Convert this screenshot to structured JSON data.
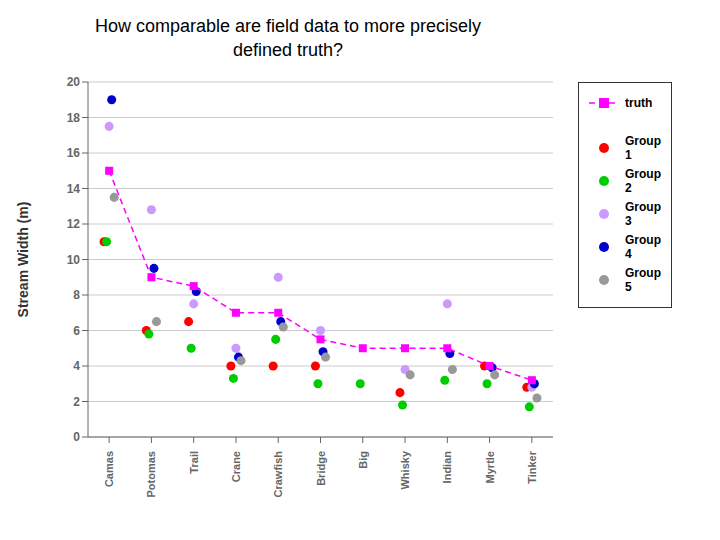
{
  "chart_data": {
    "type": "scatter",
    "title": "How comparable are field data to more precisely\ndefined truth?",
    "ylabel": "Stream Width (m)",
    "categories": [
      "Camas",
      "Potomas",
      "Trail",
      "Crane",
      "Crawfish",
      "Bridge",
      "Big",
      "Whisky",
      "Indian",
      "Myrtle",
      "Tinker"
    ],
    "series": [
      {
        "name": "Group\n1",
        "type": "scatter",
        "color": "#ff0000",
        "marker": "circle",
        "values": [
          11,
          6,
          6.5,
          4,
          4,
          4,
          null,
          2.5,
          null,
          4,
          2.8
        ]
      },
      {
        "name": "Group\n2",
        "type": "scatter",
        "color": "#00cc00",
        "marker": "circle",
        "values": [
          11,
          5.8,
          5,
          3.3,
          5.5,
          3,
          3,
          1.8,
          3.2,
          3,
          1.7
        ]
      },
      {
        "name": "Group\n3",
        "type": "scatter",
        "color": "#cc99ff",
        "marker": "circle",
        "values": [
          17.5,
          12.8,
          7.5,
          5,
          9,
          6,
          null,
          3.8,
          7.5,
          null,
          2.8
        ]
      },
      {
        "name": "Group\n4",
        "type": "scatter",
        "color": "#0000cc",
        "marker": "circle",
        "values": [
          19,
          9.5,
          8.2,
          4.5,
          6.5,
          4.8,
          null,
          null,
          4.7,
          3.9,
          3
        ]
      },
      {
        "name": "Group\n5",
        "type": "scatter",
        "color": "#999999",
        "marker": "circle",
        "values": [
          13.5,
          6.5,
          null,
          4.3,
          6.2,
          4.5,
          null,
          3.5,
          3.8,
          3.5,
          2.2
        ]
      },
      {
        "name": "truth",
        "type": "line",
        "color": "#ff00ff",
        "marker": "square",
        "line_style": "dashed",
        "values": [
          15,
          9,
          8.5,
          7,
          7,
          5.5,
          5,
          5,
          5,
          4,
          3.2
        ]
      }
    ],
    "ylim": [
      0,
      20
    ],
    "yticks": [
      0,
      2,
      4,
      6,
      8,
      10,
      12,
      14,
      16,
      18,
      20
    ],
    "grid": "y",
    "legend": "right"
  }
}
